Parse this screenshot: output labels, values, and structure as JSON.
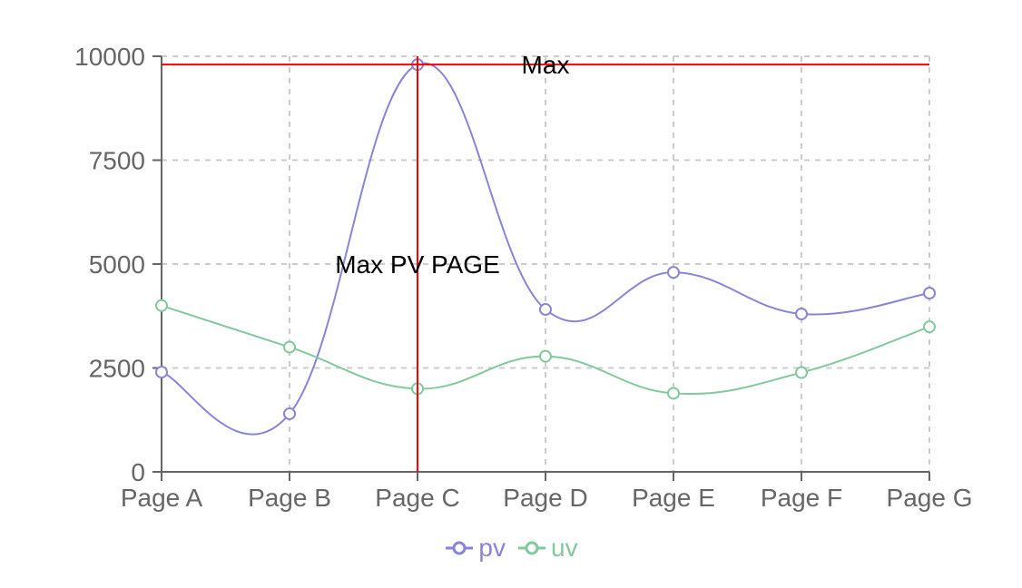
{
  "chart_data": {
    "type": "line",
    "categories": [
      "Page A",
      "Page B",
      "Page C",
      "Page D",
      "Page E",
      "Page F",
      "Page G"
    ],
    "series": [
      {
        "name": "pv",
        "color": "#8884d8",
        "values": [
          2400,
          1398,
          9800,
          3908,
          4800,
          3800,
          4300
        ]
      },
      {
        "name": "uv",
        "color": "#82ca9d",
        "values": [
          4000,
          3000,
          2000,
          2780,
          1890,
          2390,
          3490
        ]
      }
    ],
    "ylim": [
      0,
      10000
    ],
    "yticks": [
      0,
      2500,
      5000,
      7500,
      10000
    ],
    "grid": true,
    "legend": "bottom-center",
    "reference_lines": [
      {
        "axis": "y",
        "value": 9800,
        "label": "Max",
        "color": "#ff0000"
      },
      {
        "axis": "x",
        "value": "Page C",
        "label": "Max PV PAGE",
        "color": "#ff0000"
      }
    ]
  }
}
